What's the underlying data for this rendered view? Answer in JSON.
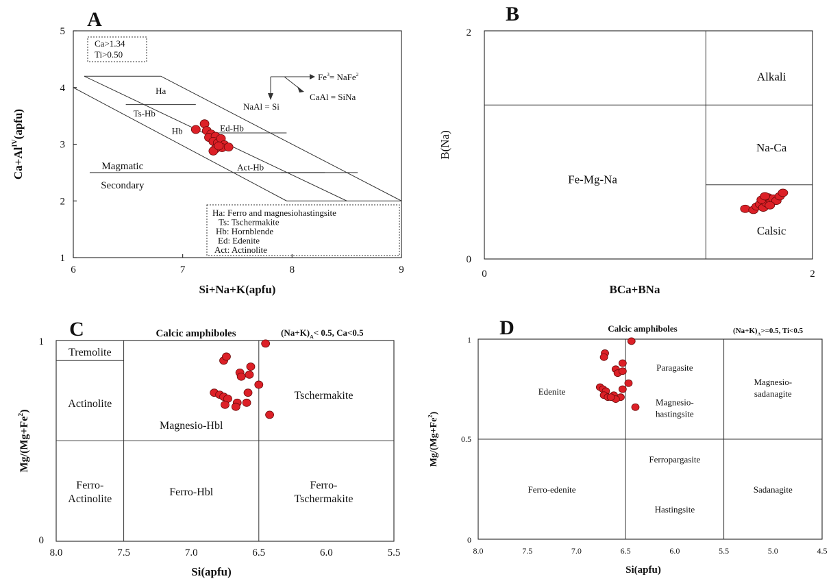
{
  "colors": {
    "point": "#dc2027",
    "point_edge": "#6a0a0a",
    "line": "#333333"
  },
  "chart_data": [
    {
      "panel": "A",
      "type": "scatter",
      "xlabel": "Si+Na+K(apfu)",
      "ylabel_main": "Ca+Al",
      "ylabel_sup": "IV",
      "ylabel_tail": "(apfu)",
      "xlim": [
        6,
        9
      ],
      "ylim": [
        1,
        5
      ],
      "xticks": [
        "6",
        "7",
        "8",
        "9"
      ],
      "yticks": [
        "1",
        "2",
        "3",
        "4",
        "5"
      ],
      "conditions": [
        "Ca>1.34",
        "Ti>0.50"
      ],
      "field_labels": [
        {
          "text": "Ha",
          "x": 6.8,
          "y": 3.95
        },
        {
          "text": "Ts-Hb",
          "x": 6.65,
          "y": 3.55
        },
        {
          "text": "Hb",
          "x": 6.95,
          "y": 3.24
        },
        {
          "text": "Ed-Hb",
          "x": 7.45,
          "y": 3.29
        },
        {
          "text": "Act-Hb",
          "x": 7.62,
          "y": 2.6
        }
      ],
      "zone_labels": [
        {
          "text": "Magmatic",
          "x": 6.45,
          "y": 2.62
        },
        {
          "text": "Secondary",
          "x": 6.45,
          "y": 2.28
        }
      ],
      "vectors": [
        {
          "text_main": "Fe",
          "text_sup": "3",
          "text_tail": "= NaFe",
          "text_tail_sup": "2"
        },
        {
          "text_main": "CaAl = SiNa"
        },
        {
          "text_main": "NaAl = Si"
        }
      ],
      "legend": [
        "Ha: Ferro and magnesiohastingsite",
        "Ts: Tschermakite",
        "Hb: Hornblende",
        "Ed: Edenite",
        "Act: Actinolite"
      ],
      "points": [
        {
          "x": 7.12,
          "y": 3.26
        },
        {
          "x": 7.2,
          "y": 3.36
        },
        {
          "x": 7.22,
          "y": 3.24
        },
        {
          "x": 7.26,
          "y": 3.18
        },
        {
          "x": 7.24,
          "y": 3.12
        },
        {
          "x": 7.3,
          "y": 3.14
        },
        {
          "x": 7.28,
          "y": 3.05
        },
        {
          "x": 7.32,
          "y": 3.02
        },
        {
          "x": 7.35,
          "y": 3.1
        },
        {
          "x": 7.38,
          "y": 2.99
        },
        {
          "x": 7.36,
          "y": 2.94
        },
        {
          "x": 7.3,
          "y": 2.92
        },
        {
          "x": 7.28,
          "y": 2.88
        },
        {
          "x": 7.42,
          "y": 2.95
        },
        {
          "x": 7.33,
          "y": 2.97
        }
      ]
    },
    {
      "panel": "B",
      "type": "scatter",
      "xlabel": "BCa+BNa",
      "ylabel": "B(Na)",
      "xlim": [
        0,
        2
      ],
      "ylim": [
        0,
        2
      ],
      "xticks": [
        "0",
        "2"
      ],
      "yticks": [
        "0",
        "2"
      ],
      "field_labels": [
        {
          "text": "Alkali",
          "x": 1.75,
          "y": 1.6
        },
        {
          "text": "Na-Ca",
          "x": 1.75,
          "y": 0.98
        },
        {
          "text": "Fe-Mg-Na",
          "x": 0.66,
          "y": 0.7
        },
        {
          "text": "Calsic",
          "x": 1.75,
          "y": 0.25
        }
      ],
      "points": [
        {
          "x": 1.59,
          "y": 0.44
        },
        {
          "x": 1.64,
          "y": 0.43
        },
        {
          "x": 1.66,
          "y": 0.46
        },
        {
          "x": 1.68,
          "y": 0.48
        },
        {
          "x": 1.7,
          "y": 0.45
        },
        {
          "x": 1.72,
          "y": 0.49
        },
        {
          "x": 1.69,
          "y": 0.52
        },
        {
          "x": 1.73,
          "y": 0.54
        },
        {
          "x": 1.75,
          "y": 0.5
        },
        {
          "x": 1.76,
          "y": 0.53
        },
        {
          "x": 1.78,
          "y": 0.51
        },
        {
          "x": 1.8,
          "y": 0.55
        },
        {
          "x": 1.82,
          "y": 0.58
        },
        {
          "x": 1.71,
          "y": 0.55
        },
        {
          "x": 1.74,
          "y": 0.47
        }
      ]
    },
    {
      "panel": "C",
      "type": "scatter",
      "title": "Calcic amphiboles",
      "condition_main": "(Na+K)",
      "condition_sub": "A",
      "condition_tail": "< 0.5, Ca<0.5",
      "xlabel": "Si(apfu)",
      "ylabel_main": "Mg/(Mg+Fe",
      "ylabel_sup": "2",
      "ylabel_tail": ")",
      "xlim": [
        8.0,
        5.5
      ],
      "ylim": [
        0,
        1
      ],
      "xticks": [
        "8.0",
        "7.5",
        "7.0",
        "6.5",
        "6.0",
        "5.5"
      ],
      "yticks": [
        "0",
        "1"
      ],
      "field_labels": [
        {
          "text": "Tremolite",
          "x": 7.75,
          "y": 0.945
        },
        {
          "text": "Actinolite",
          "x": 7.75,
          "y": 0.69
        },
        {
          "text": "Magnesio-Hbl",
          "x": 7.0,
          "y": 0.58
        },
        {
          "text": "Tschermakite",
          "x": 6.02,
          "y": 0.73
        },
        {
          "text": "Ferro-Hbl",
          "x": 7.0,
          "y": 0.25
        }
      ],
      "field_labels_two_line": [
        {
          "line1": "Ferro-",
          "line2": "Actinolite",
          "x": 7.75,
          "y": 0.25
        },
        {
          "line1": "Ferro-",
          "line2": "Tschermakite",
          "x": 6.02,
          "y": 0.25
        }
      ],
      "points": [
        {
          "x": 6.45,
          "y": 0.985
        },
        {
          "x": 6.76,
          "y": 0.9
        },
        {
          "x": 6.74,
          "y": 0.92
        },
        {
          "x": 6.64,
          "y": 0.84
        },
        {
          "x": 6.63,
          "y": 0.82
        },
        {
          "x": 6.56,
          "y": 0.87
        },
        {
          "x": 6.57,
          "y": 0.83
        },
        {
          "x": 6.5,
          "y": 0.78
        },
        {
          "x": 6.83,
          "y": 0.74
        },
        {
          "x": 6.79,
          "y": 0.73
        },
        {
          "x": 6.76,
          "y": 0.72
        },
        {
          "x": 6.73,
          "y": 0.71
        },
        {
          "x": 6.66,
          "y": 0.69
        },
        {
          "x": 6.75,
          "y": 0.68
        },
        {
          "x": 6.67,
          "y": 0.67
        },
        {
          "x": 6.58,
          "y": 0.74
        },
        {
          "x": 6.59,
          "y": 0.69
        },
        {
          "x": 6.42,
          "y": 0.63
        }
      ]
    },
    {
      "panel": "D",
      "type": "scatter",
      "title": "Calcic amphiboles",
      "condition_main": "(Na+K)",
      "condition_sub": "A",
      "condition_tail": ">=0.5, Ti<0.5",
      "xlabel": "Si(apfu)",
      "ylabel_main": "Mg/(Mg+Fe",
      "ylabel_sup": "2",
      "ylabel_tail": ")",
      "xlim": [
        8.0,
        4.5
      ],
      "ylim": [
        0,
        1
      ],
      "xticks": [
        "8.0",
        "7.5",
        "7.0",
        "6.5",
        "6.0",
        "5.5",
        "5.0",
        "4.5"
      ],
      "yticks": [
        "0",
        "0.5",
        "1"
      ],
      "field_labels": [
        {
          "text": "Edenite",
          "x": 7.25,
          "y": 0.74
        },
        {
          "text": "Paragasite",
          "x": 6.0,
          "y": 0.86
        },
        {
          "text": "Ferropargasite",
          "x": 6.0,
          "y": 0.4
        },
        {
          "text": "Hastingsite",
          "x": 6.0,
          "y": 0.15
        },
        {
          "text": "Ferro-edenite",
          "x": 7.25,
          "y": 0.25
        },
        {
          "text": "Sadanagite",
          "x": 5.0,
          "y": 0.25
        }
      ],
      "field_labels_two_line": [
        {
          "line1": "Magnesio-",
          "line2": "hastingsite",
          "x": 6.0,
          "y": 0.66
        },
        {
          "line1": "Magnesio-",
          "line2": "sadanagite",
          "x": 5.0,
          "y": 0.76
        }
      ],
      "points": [
        {
          "x": 6.44,
          "y": 0.99
        },
        {
          "x": 6.71,
          "y": 0.93
        },
        {
          "x": 6.72,
          "y": 0.91
        },
        {
          "x": 6.53,
          "y": 0.88
        },
        {
          "x": 6.6,
          "y": 0.85
        },
        {
          "x": 6.58,
          "y": 0.83
        },
        {
          "x": 6.53,
          "y": 0.84
        },
        {
          "x": 6.47,
          "y": 0.78
        },
        {
          "x": 6.76,
          "y": 0.76
        },
        {
          "x": 6.73,
          "y": 0.75
        },
        {
          "x": 6.7,
          "y": 0.74
        },
        {
          "x": 6.72,
          "y": 0.72
        },
        {
          "x": 6.68,
          "y": 0.71
        },
        {
          "x": 6.62,
          "y": 0.72
        },
        {
          "x": 6.55,
          "y": 0.71
        },
        {
          "x": 6.53,
          "y": 0.75
        },
        {
          "x": 6.4,
          "y": 0.66
        },
        {
          "x": 6.6,
          "y": 0.7
        },
        {
          "x": 6.65,
          "y": 0.71
        }
      ]
    }
  ]
}
